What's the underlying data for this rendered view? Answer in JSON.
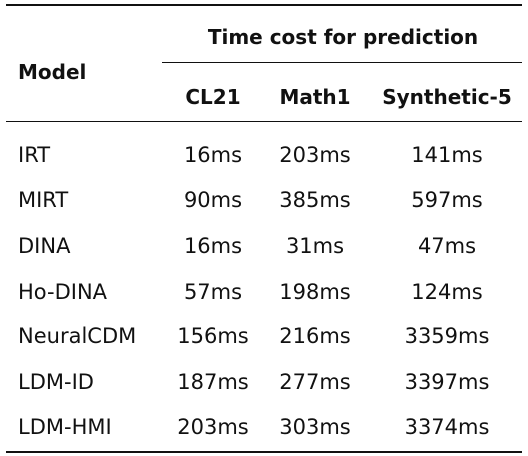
{
  "table": {
    "header": {
      "model_label": "Model",
      "group_label": "Time cost for prediction",
      "columns": [
        "CL21",
        "Math1",
        "Synthetic-5"
      ]
    },
    "rows": [
      {
        "model": "IRT",
        "values": [
          "16ms",
          "203ms",
          "141ms"
        ]
      },
      {
        "model": "MIRT",
        "values": [
          "90ms",
          "385ms",
          "597ms"
        ]
      },
      {
        "model": "DINA",
        "values": [
          "16ms",
          "31ms",
          "47ms"
        ]
      },
      {
        "model": "Ho-DINA",
        "values": [
          "57ms",
          "198ms",
          "124ms"
        ]
      },
      {
        "model": "NeuralCDM",
        "values": [
          "156ms",
          "216ms",
          "3359ms"
        ]
      },
      {
        "model": "LDM-ID",
        "values": [
          "187ms",
          "277ms",
          "3397ms"
        ]
      },
      {
        "model": "LDM-HMI",
        "values": [
          "203ms",
          "303ms",
          "3374ms"
        ]
      }
    ]
  }
}
